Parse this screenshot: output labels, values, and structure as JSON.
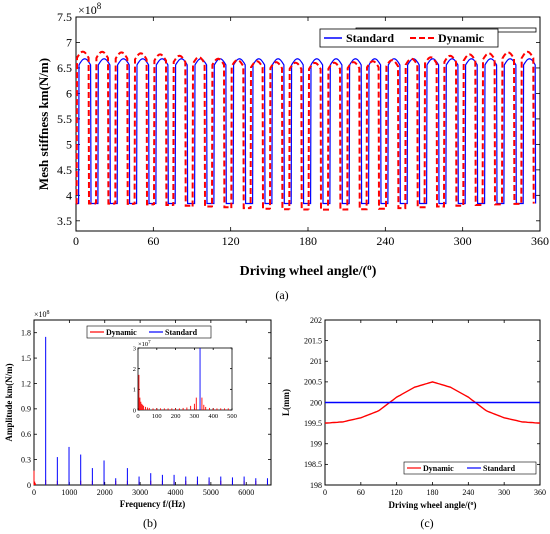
{
  "panel_labels": [
    "(a)",
    "(b)",
    "(c)"
  ],
  "colors": {
    "standard": "#0000ff",
    "dynamic": "#ff0000",
    "axis": "#000000"
  },
  "chart_data": [
    {
      "type": "line",
      "panel": "(a)",
      "xlabel": "Driving wheel angle/(°)",
      "ylabel": "Mesh stiffness km(N/m)",
      "y_multiplier": "×10^8",
      "xlim": [
        0,
        360
      ],
      "ylim": [
        3.3,
        7.5
      ],
      "xticks": [
        0,
        60,
        120,
        180,
        240,
        300,
        360
      ],
      "yticks": [
        3.5,
        4,
        4.5,
        5,
        5.5,
        6,
        6.5,
        7,
        7.5
      ],
      "legend": "top-right",
      "grid": false,
      "mesh_period_deg": 15,
      "series": [
        {
          "name": "Standard",
          "style": "solid",
          "color": "#0000ff",
          "high_value": 6.68,
          "low_value": 3.84
        },
        {
          "name": "Dynamic",
          "style": "dashed",
          "color": "#ff0000",
          "high_range": [
            6.6,
            6.82
          ],
          "low_range": [
            3.72,
            3.84
          ]
        }
      ]
    },
    {
      "type": "bar",
      "panel": "(b)",
      "xlabel": "Frequency f/(Hz)",
      "ylabel": "Amplitude km(N/m)",
      "y_multiplier": "×10^8",
      "xlim": [
        0,
        6700
      ],
      "ylim": [
        0,
        1.95
      ],
      "xticks": [
        0,
        1000,
        2000,
        3000,
        4000,
        5000,
        6000
      ],
      "yticks": [
        0,
        0.3,
        0.6,
        0.9,
        1.2,
        1.5,
        1.8
      ],
      "legend": "top",
      "grid": false,
      "series": [
        {
          "name": "Dynamic",
          "color": "#ff0000",
          "x": [
            0,
            20,
            40,
            330,
            660,
            990,
            1320,
            1650,
            1980,
            2310,
            2640,
            2970,
            3300,
            3630,
            3960,
            4290,
            4620,
            4950,
            5280,
            5610,
            5940,
            6270,
            6600
          ],
          "values": [
            0.17,
            0.04,
            0.02,
            0.06,
            0.05,
            0.05,
            0.05,
            0.05,
            0.05,
            0.05,
            0.05,
            0.05,
            0.05,
            0.05,
            0.05,
            0.05,
            0.05,
            0.05,
            0.05,
            0.05,
            0.05,
            0.05,
            0.05
          ]
        },
        {
          "name": "Standard",
          "color": "#0000ff",
          "x": [
            330,
            660,
            990,
            1320,
            1650,
            1980,
            2310,
            2640,
            2970,
            3300,
            3630,
            3960,
            4290,
            4620,
            4950,
            5280,
            5610,
            5940,
            6270,
            6600
          ],
          "values": [
            1.75,
            0.33,
            0.45,
            0.36,
            0.2,
            0.29,
            0.08,
            0.2,
            0.1,
            0.14,
            0.12,
            0.12,
            0.1,
            0.1,
            0.09,
            0.1,
            0.09,
            0.1,
            0.08,
            0.08
          ]
        }
      ],
      "inset": {
        "y_multiplier": "×10^7",
        "xlim": [
          0,
          500
        ],
        "ylim": [
          0,
          3
        ],
        "xticks": [
          0,
          100,
          200,
          300,
          400,
          500
        ],
        "yticks": [
          0,
          1,
          2,
          3
        ],
        "series": [
          {
            "name": "Dynamic",
            "color": "#ff0000",
            "x": [
              5,
              10,
              15,
              20,
              25,
              30,
              40,
              50,
              60,
              80,
              100,
              120,
              140,
              160,
              180,
              200,
              220,
              240,
              260,
              280,
              300,
              310,
              340,
              350,
              360,
              380,
              400,
              420,
              440,
              460,
              480
            ],
            "values": [
              1.7,
              0.6,
              0.4,
              0.3,
              0.25,
              0.2,
              0.15,
              0.12,
              0.1,
              0.08,
              0.08,
              0.08,
              0.08,
              0.08,
              0.08,
              0.08,
              0.08,
              0.1,
              0.12,
              0.2,
              0.3,
              0.6,
              0.6,
              0.25,
              0.15,
              0.1,
              0.08,
              0.08,
              0.08,
              0.08,
              0.08
            ]
          },
          {
            "name": "Standard",
            "color": "#0000ff",
            "x": [
              330
            ],
            "values": [
              3.0
            ]
          }
        ]
      }
    },
    {
      "type": "line",
      "panel": "(c)",
      "xlabel": "Driving wheel angle/(°)",
      "ylabel": "L(mm)",
      "xlim": [
        0,
        360
      ],
      "ylim": [
        198,
        202
      ],
      "xticks": [
        0,
        60,
        120,
        180,
        240,
        300,
        360
      ],
      "yticks": [
        198,
        198.5,
        199,
        199.5,
        200,
        200.5,
        201,
        201.5,
        202
      ],
      "legend": "bottom-right",
      "grid": false,
      "series": [
        {
          "name": "Dynamic",
          "color": "#ff0000",
          "x": [
            0,
            30,
            60,
            90,
            120,
            150,
            180,
            210,
            240,
            270,
            300,
            330,
            360
          ],
          "values": [
            199.5,
            199.53,
            199.63,
            199.8,
            200.13,
            200.37,
            200.5,
            200.37,
            200.13,
            199.8,
            199.63,
            199.53,
            199.5
          ]
        },
        {
          "name": "Standard",
          "color": "#0000ff",
          "x": [
            0,
            360
          ],
          "values": [
            200,
            200
          ]
        }
      ]
    }
  ]
}
